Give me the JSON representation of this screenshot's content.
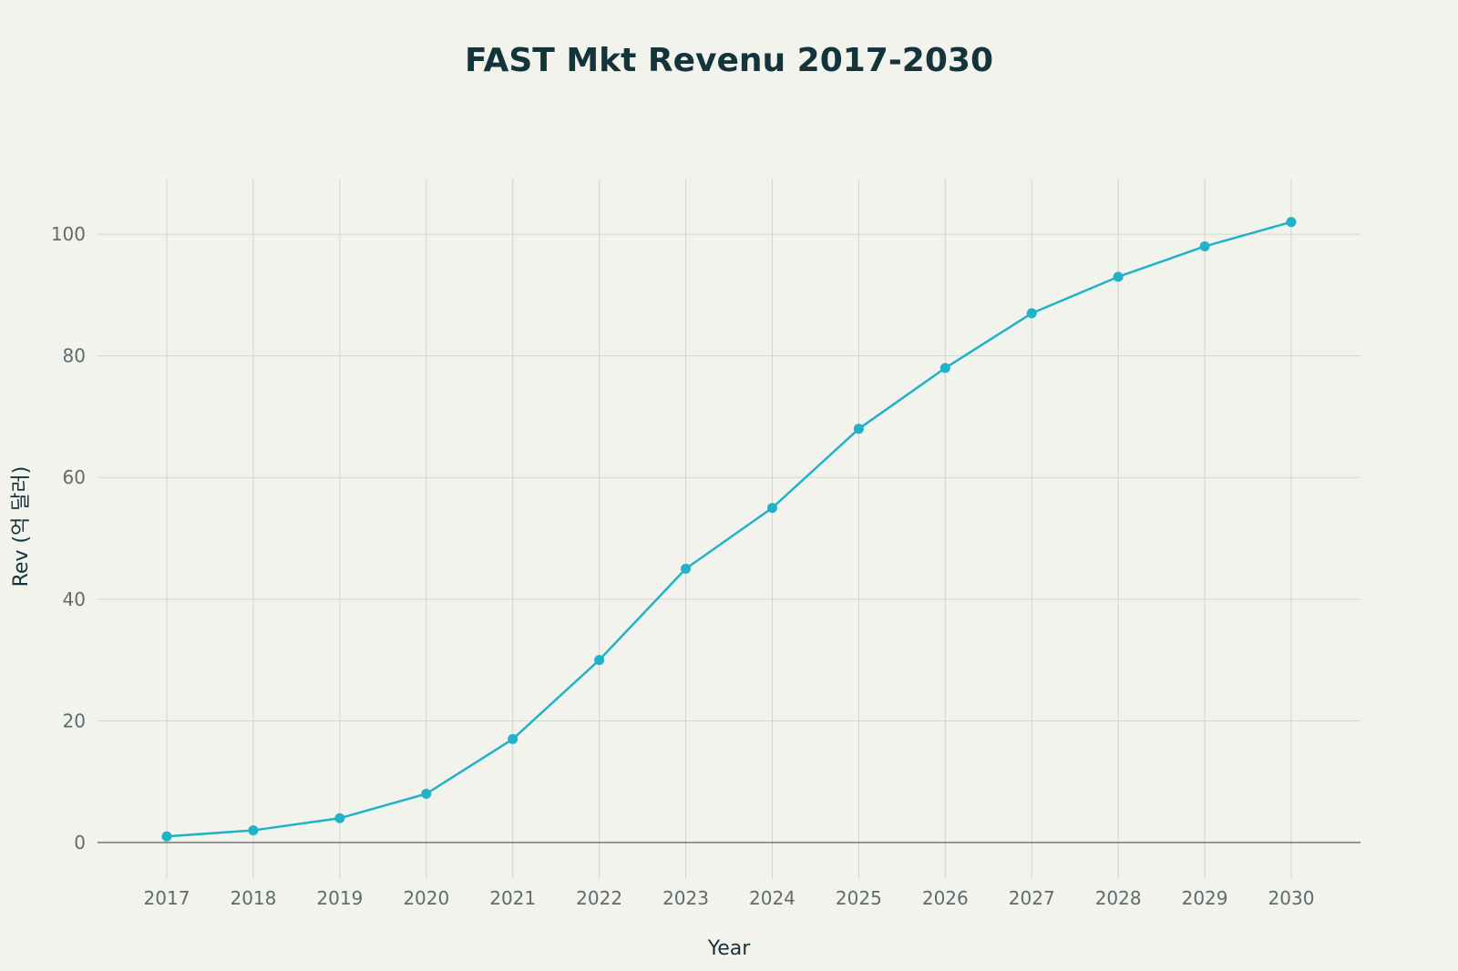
{
  "chart_data": {
    "type": "line",
    "title": "FAST Mkt Revenu 2017-2030",
    "xlabel": "Year",
    "ylabel": "Rev (억 달러)",
    "x": [
      "2017",
      "2018",
      "2019",
      "2020",
      "2021",
      "2022",
      "2023",
      "2024",
      "2025",
      "2026",
      "2027",
      "2028",
      "2029",
      "2030"
    ],
    "series": [
      {
        "values": [
          1,
          2,
          4,
          8,
          17,
          30,
          45,
          55,
          68,
          78,
          87,
          93,
          98,
          102
        ]
      }
    ],
    "ylim": [
      -6,
      109
    ],
    "yticks": [
      0,
      20,
      40,
      60,
      80,
      100
    ],
    "grid": true,
    "legend": "none",
    "line_color": "#1fb2c8"
  }
}
